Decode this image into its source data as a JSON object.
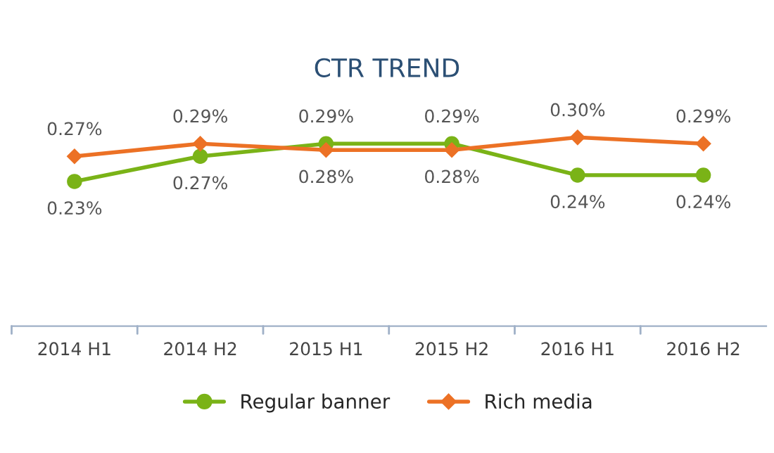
{
  "chart_data": {
    "type": "line",
    "title": "CTR TREND",
    "categories": [
      "2014 H1",
      "2014 H2",
      "2015 H1",
      "2015 H2",
      "2016 H1",
      "2016 H2"
    ],
    "series": [
      {
        "name": "Regular banner",
        "color": "#7ab317",
        "marker": "circle",
        "values": [
          0.23,
          0.27,
          0.29,
          0.29,
          0.24,
          0.24
        ],
        "value_labels": [
          "0.23%",
          "0.27%",
          "0.29%",
          "0.29%",
          "0.24%",
          "0.24%"
        ]
      },
      {
        "name": "Rich media",
        "color": "#ec7125",
        "marker": "diamond",
        "values": [
          0.27,
          0.29,
          0.28,
          0.28,
          0.3,
          0.29
        ],
        "value_labels": [
          "0.27%",
          "0.29%",
          "0.28%",
          "0.28%",
          "0.30%",
          "0.29%"
        ]
      }
    ],
    "tick_labels": "x",
    "grid": false,
    "legend": "bottom"
  }
}
